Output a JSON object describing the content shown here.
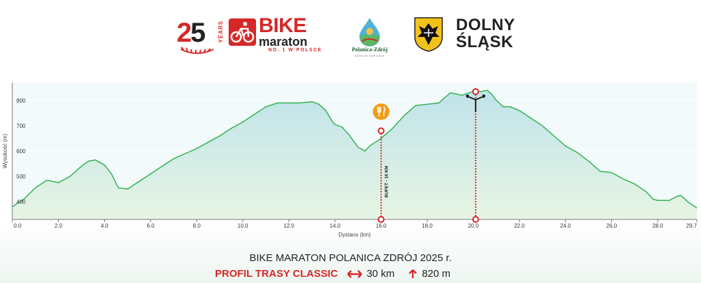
{
  "logos": {
    "anniversary_number_2": "2",
    "anniversary_number_5": "5",
    "anniversary_years": "YEARS",
    "bike": "BIKE",
    "maraton": "maraton",
    "tagline": "NO. 1 W POLSCE",
    "polanica_name": "Polanica-Zdrój",
    "polanica_sub": "ZDROJE ZDROWIA",
    "dolny_line1": "DOLNY",
    "dolny_line2": "ŚLĄSK"
  },
  "colors": {
    "accent_red": "#d62828",
    "line_green": "#3cb55a",
    "area_top": "#bfe3ea",
    "area_bottom": "#e7f5e3",
    "marker_orange": "#f39c12"
  },
  "footer": {
    "title": "BIKE MARATON POLANICA ZDRÓJ 2025 r.",
    "subtitle": "PROFIL TRASY CLASSIC",
    "distance": "30 km",
    "elevation": "820 m"
  },
  "chart_data": {
    "type": "area",
    "title": "",
    "xlabel": "Dystans (km)",
    "ylabel": "Wysokość (m)",
    "xlim": [
      0,
      29.7
    ],
    "ylim": [
      330,
      870
    ],
    "x_ticks": [
      "0.0",
      "2.0",
      "4.0",
      "6.0",
      "8.0",
      "10.0",
      "12.0",
      "14.0",
      "16.0",
      "18.0",
      "20.0",
      "22.0",
      "24.0",
      "26.0",
      "28.0",
      "29.7"
    ],
    "x_tick_values": [
      0,
      2,
      4,
      6,
      8,
      10,
      12,
      14,
      16,
      18,
      20,
      22,
      24,
      26,
      28,
      29.7
    ],
    "y_ticks": [
      "400",
      "500",
      "600",
      "700",
      "800"
    ],
    "y_tick_values": [
      400,
      500,
      600,
      700,
      800
    ],
    "grid": true,
    "legend": "none",
    "series": [
      {
        "x": [
          0,
          0.5,
          1.0,
          1.5,
          2.0,
          2.5,
          3.0,
          3.3,
          3.6,
          4.0,
          4.3,
          4.6,
          5.0,
          5.5,
          6.0,
          6.5,
          7.0,
          7.5,
          8.0,
          8.5,
          9.0,
          9.5,
          10.0,
          10.5,
          11.0,
          11.5,
          12.0,
          12.5,
          13.0,
          13.3,
          13.6,
          13.9,
          14.0,
          14.3,
          14.6,
          15.0,
          15.3,
          15.5,
          16.0,
          16.5,
          17.0,
          17.5,
          18.0,
          18.5,
          19.0,
          19.3,
          19.5,
          19.8,
          20.0,
          20.3,
          20.6,
          20.8,
          21.0,
          21.3,
          21.6,
          22.0,
          22.5,
          23.0,
          23.5,
          24.0,
          24.5,
          25.0,
          25.5,
          26.0,
          26.5,
          27.0,
          27.5,
          27.8,
          28.0,
          28.2,
          28.5,
          28.8,
          29.0,
          29.3,
          29.7
        ],
        "y": [
          380,
          410,
          455,
          485,
          475,
          500,
          540,
          560,
          565,
          545,
          510,
          455,
          450,
          480,
          510,
          540,
          570,
          590,
          610,
          635,
          660,
          690,
          715,
          745,
          775,
          790,
          790,
          790,
          795,
          785,
          760,
          715,
          705,
          695,
          665,
          615,
          600,
          620,
          650,
          690,
          740,
          780,
          785,
          790,
          830,
          825,
          820,
          830,
          835,
          835,
          840,
          825,
          800,
          775,
          775,
          760,
          730,
          700,
          660,
          620,
          595,
          560,
          520,
          515,
          490,
          470,
          440,
          410,
          405,
          405,
          405,
          420,
          425,
          400,
          375
        ]
      }
    ],
    "annotations": [
      {
        "label": "BUFET - 16 KM",
        "x": 16.0,
        "y": 680,
        "icon": "food-icon"
      },
      {
        "label": "",
        "x": 20.1,
        "y": 835,
        "icon": "split-arrows-icon"
      }
    ]
  }
}
